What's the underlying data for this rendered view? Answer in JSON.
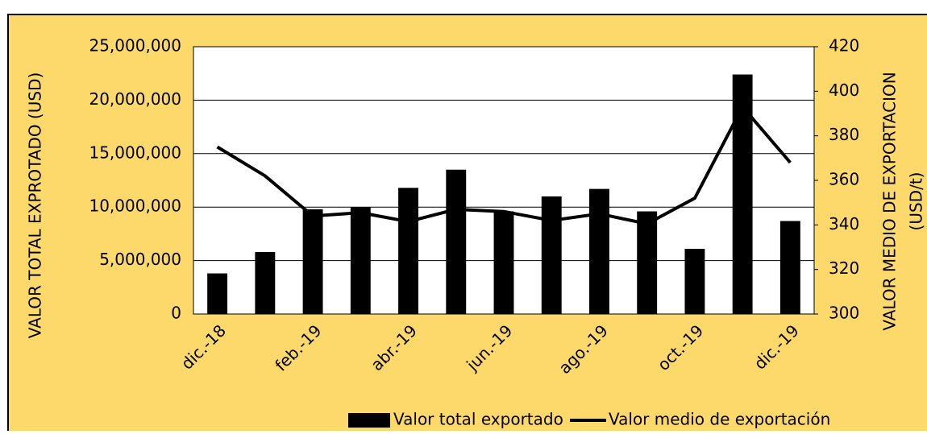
{
  "chart_data": {
    "type": "bar_line",
    "y_label": "VALOR TOTAL EXPROTADO (USD)",
    "y2_label": [
      "VALOR MEDIO DE EXPORTACION",
      "(USD/t)"
    ],
    "categories": [
      "dic.-18",
      null,
      "feb.-19",
      null,
      "abr.-19",
      null,
      "jun.-19",
      null,
      "ago.-19",
      null,
      "oct.-19",
      null,
      "dic.-19"
    ],
    "series": [
      {
        "name": "Valor total exportado",
        "color": "#000000",
        "kind": "bar",
        "values": [
          3800000,
          5800000,
          9800000,
          10000000,
          11800000,
          13500000,
          9600000,
          11000000,
          11700000,
          9600000,
          6100000,
          22400000,
          8700000
        ]
      },
      {
        "name": "Valor medio de exportación",
        "color": "#000000",
        "kind": "line",
        "axis": "y2",
        "values": [
          375,
          362,
          344,
          345.5,
          341.5,
          347,
          346,
          342,
          345,
          340.5,
          352,
          393,
          368
        ]
      }
    ],
    "ylim": [
      0,
      25000000
    ],
    "yticks": [
      {
        "value": 0,
        "label": "0"
      },
      {
        "value": 5000000,
        "label": "5,000,000"
      },
      {
        "value": 10000000,
        "label": "10,000,000"
      },
      {
        "value": 15000000,
        "label": "15,000,000"
      },
      {
        "value": 20000000,
        "label": "20,000,000"
      },
      {
        "value": 25000000,
        "label": "25,000,000"
      }
    ],
    "y2lim": [
      300,
      420
    ],
    "y2ticks": [
      300,
      320,
      340,
      360,
      380,
      400,
      420
    ],
    "grid": true,
    "legend": "bottom"
  }
}
